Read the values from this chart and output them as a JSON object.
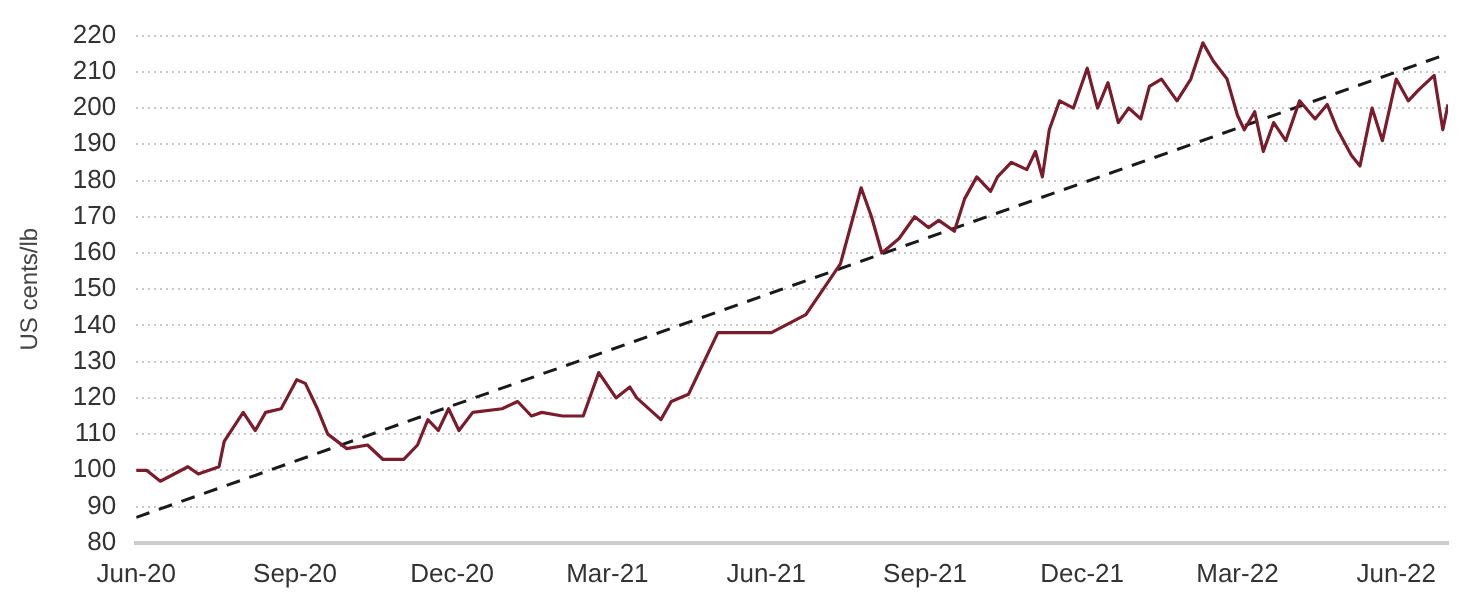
{
  "chart_data": {
    "type": "line",
    "ylabel": "US cents/lb",
    "x": [
      "2020-06-01",
      "2020-06-07",
      "2020-06-15",
      "2020-07-01",
      "2020-07-07",
      "2020-07-19",
      "2020-07-22",
      "2020-08-02",
      "2020-08-09",
      "2020-08-15",
      "2020-08-24",
      "2020-09-02",
      "2020-09-07",
      "2020-09-14",
      "2020-09-20",
      "2020-10-01",
      "2020-10-13",
      "2020-10-22",
      "2020-11-03",
      "2020-11-11",
      "2020-11-17",
      "2020-11-23",
      "2020-11-29",
      "2020-12-05",
      "2020-12-13",
      "2020-12-30",
      "2021-01-08",
      "2021-01-16",
      "2021-01-22",
      "2021-02-03",
      "2021-02-15",
      "2021-02-24",
      "2021-03-06",
      "2021-03-14",
      "2021-03-18",
      "2021-04-01",
      "2021-04-07",
      "2021-04-17",
      "2021-05-04",
      "2021-06-04",
      "2021-06-24",
      "2021-07-14",
      "2021-07-26",
      "2021-08-01",
      "2021-08-07",
      "2021-08-17",
      "2021-08-26",
      "2021-09-03",
      "2021-09-09",
      "2021-09-18",
      "2021-09-24",
      "2021-10-01",
      "2021-10-09",
      "2021-10-13",
      "2021-10-21",
      "2021-10-30",
      "2021-11-04",
      "2021-11-08",
      "2021-11-12",
      "2021-11-18",
      "2021-11-26",
      "2021-12-04",
      "2021-12-10",
      "2021-12-16",
      "2021-12-22",
      "2021-12-28",
      "2022-01-04",
      "2022-01-09",
      "2022-01-16",
      "2022-01-25",
      "2022-02-02",
      "2022-02-09",
      "2022-02-15",
      "2022-02-23",
      "2022-03-01",
      "2022-03-05",
      "2022-03-11",
      "2022-03-16",
      "2022-03-22",
      "2022-03-29",
      "2022-04-06",
      "2022-04-15",
      "2022-04-22",
      "2022-04-28",
      "2022-05-06",
      "2022-05-11",
      "2022-05-18",
      "2022-05-24",
      "2022-06-01",
      "2022-06-08",
      "2022-06-14",
      "2022-06-23",
      "2022-06-28",
      "2022-07-01"
    ],
    "series": [
      {
        "color": "#7a1c2c",
        "values": [
          100,
          100,
          97,
          101,
          99,
          101,
          108,
          116,
          111,
          116,
          117,
          125,
          124,
          117,
          110,
          106,
          107,
          103,
          103,
          107,
          114,
          111,
          117,
          111,
          116,
          117,
          119,
          115,
          116,
          115,
          115,
          127,
          120,
          123,
          120,
          114,
          119,
          121,
          138,
          138,
          143,
          157,
          178,
          170,
          160,
          164,
          170,
          167,
          169,
          166,
          175,
          181,
          177,
          181,
          185,
          183,
          188,
          181,
          194,
          202,
          200,
          211,
          200,
          207,
          196,
          200,
          197,
          206,
          208,
          202,
          208,
          218,
          213,
          208,
          198,
          194,
          199,
          188,
          196,
          191,
          202,
          197,
          201,
          194,
          187,
          184,
          200,
          191,
          208,
          202,
          205,
          209,
          194,
          201
        ]
      },
      {
        "type": "line",
        "color": "#1a1a1a",
        "line_style": "dashed",
        "x": [
          "2020-06-01",
          "2022-07-01"
        ],
        "values": [
          87,
          215
        ]
      }
    ],
    "xlim": [
      "2020-06-01",
      "2022-07-01"
    ],
    "xticks": [
      {
        "value": "2020-06-01",
        "label": "Jun-20"
      },
      {
        "value": "2020-09-01",
        "label": "Sep-20"
      },
      {
        "value": "2020-12-01",
        "label": "Dec-20"
      },
      {
        "value": "2021-03-01",
        "label": "Mar-21"
      },
      {
        "value": "2021-06-01",
        "label": "Jun-21"
      },
      {
        "value": "2021-09-01",
        "label": "Sep-21"
      },
      {
        "value": "2021-12-01",
        "label": "Dec-21"
      },
      {
        "value": "2022-03-01",
        "label": "Mar-22"
      },
      {
        "value": "2022-06-01",
        "label": "Jun-22"
      }
    ],
    "ylim": [
      80,
      220
    ],
    "yticks": [
      80,
      90,
      100,
      110,
      120,
      130,
      140,
      150,
      160,
      170,
      180,
      190,
      200,
      210,
      220
    ],
    "grid": "y",
    "legend": false,
    "marker": "none",
    "line_style": "solid"
  }
}
